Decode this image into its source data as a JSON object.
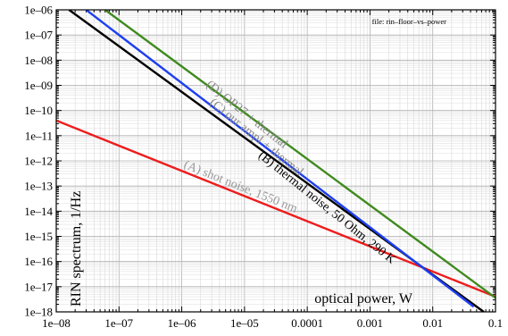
{
  "chart_data": {
    "type": "line",
    "title": "",
    "file_label": "file: rin–floor–vs–power",
    "xlabel": "optical power, W",
    "ylabel": "RIN spectrum, 1/Hz",
    "x_scale": "log",
    "y_scale": "log",
    "xlim": [
      1e-08,
      0.1
    ],
    "ylim": [
      1e-18,
      1e-06
    ],
    "grid": true,
    "x_ticks": [
      {
        "value": 1e-08,
        "label": "1e–08"
      },
      {
        "value": 1e-07,
        "label": "1e–07"
      },
      {
        "value": 1e-06,
        "label": "1e–06"
      },
      {
        "value": 1e-05,
        "label": "1e–05"
      },
      {
        "value": 0.0001,
        "label": "0.0001"
      },
      {
        "value": 0.001,
        "label": "0.001"
      },
      {
        "value": 0.01,
        "label": "0.01"
      },
      {
        "value": 0.1,
        "label": "0.1"
      }
    ],
    "y_ticks": [
      {
        "value": 1e-18,
        "label": "1e–18"
      },
      {
        "value": 1e-17,
        "label": "1e–17"
      },
      {
        "value": 1e-16,
        "label": "1e–16"
      },
      {
        "value": 1e-15,
        "label": "1e–15"
      },
      {
        "value": 1e-14,
        "label": "1e–14"
      },
      {
        "value": 1e-13,
        "label": "1e–13"
      },
      {
        "value": 1e-12,
        "label": "1e–12"
      },
      {
        "value": 1e-11,
        "label": "1e–11"
      },
      {
        "value": 1e-10,
        "label": "1e–10"
      },
      {
        "value": 1e-09,
        "label": "1e–09"
      },
      {
        "value": 1e-08,
        "label": "1e–08"
      },
      {
        "value": 1e-07,
        "label": "1e–07"
      },
      {
        "value": 1e-06,
        "label": "1e–06"
      }
    ],
    "series": [
      {
        "name": "(A) shot noise, 1550 nm",
        "color": "#ee1c1c",
        "label_color": "#999999",
        "x": [
          1e-08,
          0.1
        ],
        "y": [
          4e-11,
          4e-18
        ],
        "label_x": 1e-06,
        "label_slope": 1
      },
      {
        "name": "(B) thermal noise, 50 Ohm, 290 K",
        "color": "#000000",
        "label_color": "#000000",
        "x": [
          1.6e-08,
          0.065
        ],
        "y": [
          1e-06,
          1e-18
        ],
        "label_x": 1.5e-05,
        "label_slope": 2
      },
      {
        "name": "(C) our ampl + thermal",
        "color": "#1e3ff0",
        "label_color": "#888888",
        "x": [
          3e-08,
          0.045
        ],
        "y": [
          1e-06,
          1.6e-18
        ],
        "label_x": 2.5e-06,
        "label_slope": 2
      },
      {
        "name": "(D) OP27 + thermal",
        "color": "#3f8a1e",
        "label_color": "#888888",
        "x": [
          6e-08,
          0.1
        ],
        "y": [
          1e-06,
          3.6e-18
        ],
        "label_x": 2.2e-06,
        "label_slope": 2
      }
    ]
  }
}
